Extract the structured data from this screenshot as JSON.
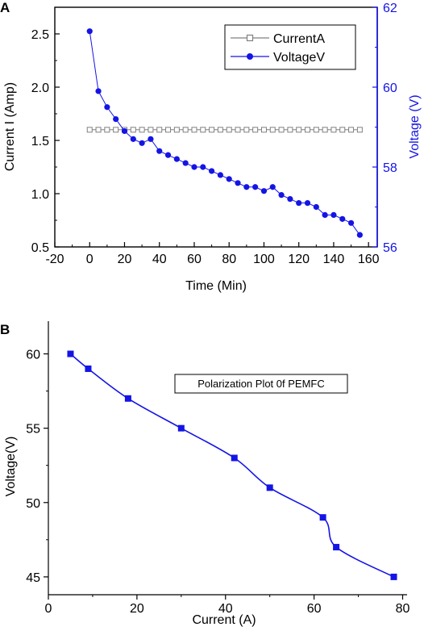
{
  "colors": {
    "voltage_blue": "#1414e6",
    "current_gray": "#808080",
    "axis_black": "#000000"
  },
  "chart_data": [
    {
      "panel": "A",
      "type": "line",
      "xlabel": "Time (Min)",
      "ylabel_left": "Current I (Amp)",
      "ylabel_right": "Voltage (V)",
      "xlim": [
        -20,
        165
      ],
      "ylim_left": [
        0.5,
        2.75
      ],
      "ylim_right": [
        56,
        62
      ],
      "x_ticks": [
        -20,
        0,
        20,
        40,
        60,
        80,
        100,
        120,
        140,
        160
      ],
      "y_left_ticks": [
        "0.5",
        "1.0",
        "1.5",
        "2.0",
        "2.5"
      ],
      "y_right_ticks": [
        "56",
        "58",
        "60",
        "62"
      ],
      "legend_position": "top-right",
      "series": [
        {
          "name": "CurrentA",
          "axis": "left",
          "marker": "open-square",
          "color": "#808080",
          "x": [
            0,
            5,
            10,
            15,
            20,
            25,
            30,
            35,
            40,
            45,
            50,
            55,
            60,
            65,
            70,
            75,
            80,
            85,
            90,
            95,
            100,
            105,
            110,
            115,
            120,
            125,
            130,
            135,
            140,
            145,
            150,
            155
          ],
          "y": [
            1.6,
            1.6,
            1.6,
            1.6,
            1.6,
            1.6,
            1.6,
            1.6,
            1.6,
            1.6,
            1.6,
            1.6,
            1.6,
            1.6,
            1.6,
            1.6,
            1.6,
            1.6,
            1.6,
            1.6,
            1.6,
            1.6,
            1.6,
            1.6,
            1.6,
            1.6,
            1.6,
            1.6,
            1.6,
            1.6,
            1.6,
            1.6
          ]
        },
        {
          "name": "VoltageV",
          "axis": "right",
          "marker": "filled-circle",
          "color": "#1414e6",
          "x": [
            0,
            5,
            10,
            15,
            20,
            25,
            30,
            35,
            40,
            45,
            50,
            55,
            60,
            65,
            70,
            75,
            80,
            85,
            90,
            95,
            100,
            105,
            110,
            115,
            120,
            125,
            130,
            135,
            140,
            145,
            150,
            155
          ],
          "y": [
            61.4,
            59.9,
            59.5,
            59.2,
            58.9,
            58.7,
            58.6,
            58.7,
            58.4,
            58.3,
            58.2,
            58.1,
            58.0,
            58.0,
            57.9,
            57.8,
            57.7,
            57.6,
            57.5,
            57.5,
            57.4,
            57.5,
            57.3,
            57.2,
            57.1,
            57.1,
            57.0,
            56.8,
            56.8,
            56.7,
            56.6,
            56.3
          ]
        }
      ]
    },
    {
      "panel": "B",
      "type": "line",
      "xlabel": "Current (A)",
      "ylabel": "Voltage(V)",
      "xlim": [
        0,
        81
      ],
      "ylim": [
        43.8,
        62.2
      ],
      "x_ticks": [
        0,
        20,
        40,
        60,
        80
      ],
      "y_ticks": [
        45,
        50,
        55,
        60
      ],
      "annotation": "Polarization Plot 0f PEMFC",
      "series": [
        {
          "marker": "filled-square",
          "color": "#1414e6",
          "x": [
            5,
            9,
            18,
            30,
            42,
            50,
            62,
            65,
            78
          ],
          "y": [
            60,
            59,
            57,
            55,
            53,
            51,
            49,
            47,
            45
          ]
        }
      ]
    }
  ]
}
